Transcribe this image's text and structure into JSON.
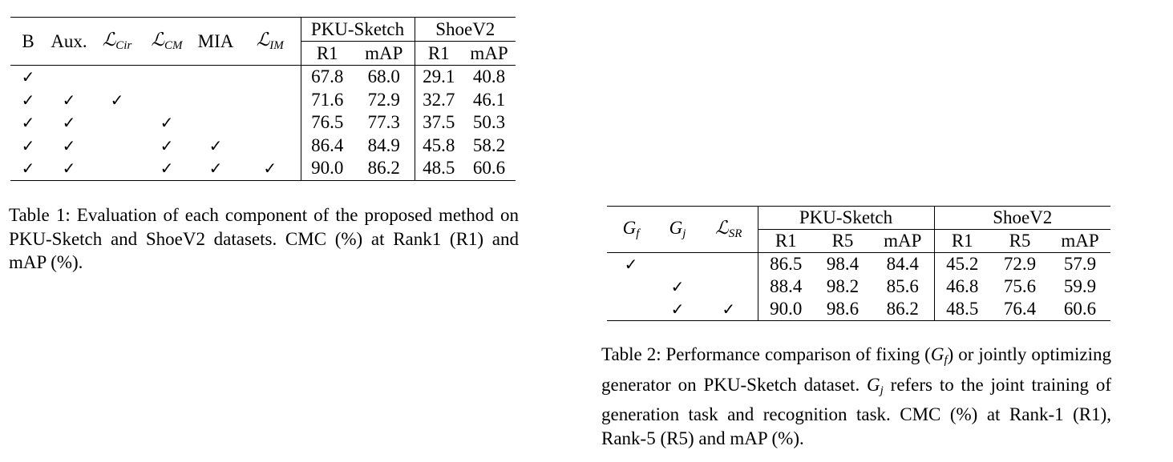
{
  "table1": {
    "headers": {
      "B": "B",
      "Aux": "Aux.",
      "L_cir": {
        "base": "ℒ",
        "sub": "Cir"
      },
      "L_cm": {
        "base": "ℒ",
        "sub": "CM"
      },
      "MIA": "MIA",
      "L_im": {
        "base": "ℒ",
        "sub": "IM"
      },
      "group1": "PKU-Sketch",
      "group2": "ShoeV2",
      "sub1": "R1",
      "sub2": "mAP",
      "sub3": "R1",
      "sub4": "mAP"
    },
    "check_symbol": "✓",
    "rows": [
      {
        "checks": [
          "✓",
          "",
          "",
          "",
          "",
          ""
        ],
        "values": [
          "67.8",
          "68.0",
          "29.1",
          "40.8"
        ]
      },
      {
        "checks": [
          "✓",
          "✓",
          "✓",
          "",
          "",
          ""
        ],
        "values": [
          "71.6",
          "72.9",
          "32.7",
          "46.1"
        ]
      },
      {
        "checks": [
          "✓",
          "✓",
          "",
          "✓",
          "",
          ""
        ],
        "values": [
          "76.5",
          "77.3",
          "37.5",
          "50.3"
        ]
      },
      {
        "checks": [
          "✓",
          "✓",
          "",
          "✓",
          "✓",
          ""
        ],
        "values": [
          "86.4",
          "84.9",
          "45.8",
          "58.2"
        ]
      },
      {
        "checks": [
          "✓",
          "✓",
          "",
          "✓",
          "✓",
          "✓"
        ],
        "values": [
          "90.0",
          "86.2",
          "48.5",
          "60.6"
        ]
      }
    ],
    "caption": "Table 1: Evaluation of each component of the proposed method on PKU-Sketch and ShoeV2 datasets. CMC (%) at Rank1 (R1) and mAP (%)."
  },
  "table2": {
    "headers": {
      "Gf": {
        "base": "G",
        "sub": "f"
      },
      "Gj": {
        "base": "G",
        "sub": "j"
      },
      "L_sr": {
        "base": "ℒ",
        "sub": "SR"
      },
      "group1": "PKU-Sketch",
      "group2": "ShoeV2",
      "sub1": "R1",
      "sub2": "R5",
      "sub3": "mAP",
      "sub4": "R1",
      "sub5": "R5",
      "sub6": "mAP"
    },
    "rows": [
      {
        "checks": [
          "✓",
          "",
          ""
        ],
        "values": [
          "86.5",
          "98.4",
          "84.4",
          "45.2",
          "72.9",
          "57.9"
        ]
      },
      {
        "checks": [
          "",
          "✓",
          ""
        ],
        "values": [
          "88.4",
          "98.2",
          "85.6",
          "46.8",
          "75.6",
          "59.9"
        ]
      },
      {
        "checks": [
          "",
          "✓",
          "✓"
        ],
        "values": [
          "90.0",
          "98.6",
          "86.2",
          "48.5",
          "76.4",
          "60.6"
        ]
      }
    ],
    "caption_parts": {
      "p1": "Table 2: Performance comparison of fixing (",
      "p2": ") or jointly optimizing generator on PKU-Sketch dataset. ",
      "p3": " refers to the joint training of generation task and recognition task. CMC (%) at Rank-1 (R1), Rank-5 (R5) and mAP (%)."
    }
  }
}
